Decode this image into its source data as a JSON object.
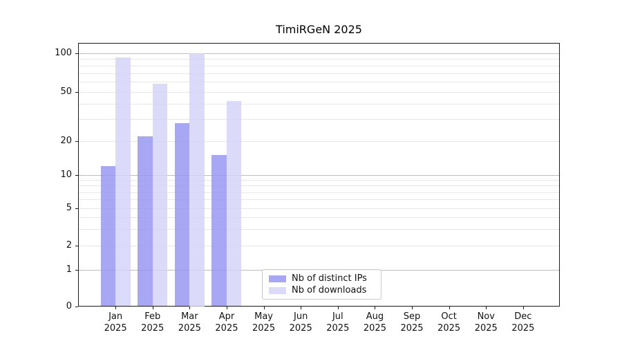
{
  "chart_data": {
    "type": "bar",
    "title": "TimiRGeN 2025",
    "categories": [
      "Jan",
      "Feb",
      "Mar",
      "Apr",
      "May",
      "Jun",
      "Jul",
      "Aug",
      "Sep",
      "Oct",
      "Nov",
      "Dec"
    ],
    "year_label": "2025",
    "series": [
      {
        "name": "Nb of distinct IPs",
        "color": "rgba(148,148,242,0.82)",
        "values": [
          12,
          22,
          28,
          15,
          0,
          0,
          0,
          0,
          0,
          0,
          0,
          0
        ]
      },
      {
        "name": "Nb of downloads",
        "color": "rgba(211,211,248,0.82)",
        "values": [
          93,
          58,
          100,
          42,
          0,
          0,
          0,
          0,
          0,
          0,
          0,
          0
        ]
      }
    ],
    "y_axis": {
      "tick_labels": [
        "0",
        "1",
        "2",
        "5",
        "10",
        "20",
        "50",
        "100"
      ],
      "tick_values": [
        0,
        1,
        2,
        5,
        10,
        20,
        50,
        100
      ],
      "scale": "log with zero baseline",
      "major_gridlines": [
        1,
        10,
        100
      ],
      "minor_gridlines": [
        2,
        3,
        4,
        5,
        6,
        7,
        8,
        9,
        20,
        30,
        40,
        50,
        60,
        70,
        80,
        90
      ]
    },
    "x_axis": {
      "label_lines": 2
    },
    "legend": {
      "position": "bottom-center"
    },
    "grid": true,
    "colors": {
      "distinct_ips_bar": "#a8a8f0",
      "downloads_bar": "#d9d9fa",
      "major_grid": "#bdbdbd",
      "minor_grid": "#e7e7e7",
      "spine": "#1a1a1a",
      "background": "#ffffff"
    }
  }
}
